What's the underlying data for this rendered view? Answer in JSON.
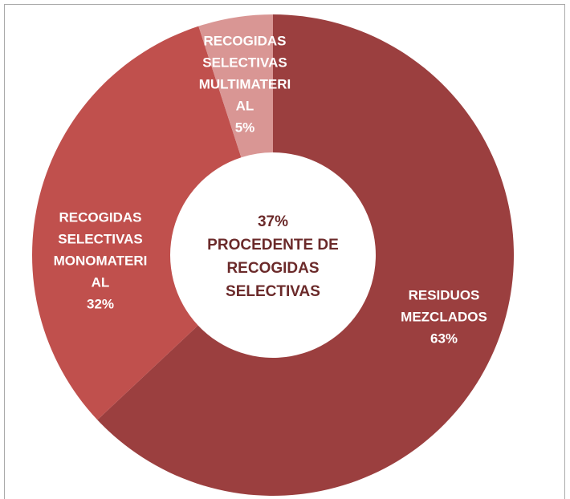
{
  "chart_data": {
    "type": "donut",
    "categories": [
      "RESIDUOS MEZCLADOS",
      "RECOGIDAS SELECTIVAS MONOMATERIAL",
      "RECOGIDAS SELECTIVAS MULTIMATERIAL"
    ],
    "values": [
      63,
      32,
      5
    ],
    "value_labels": [
      "63%",
      "32%",
      "5%"
    ],
    "colors": [
      "#9b3f3f",
      "#c0504d",
      "#d99694"
    ],
    "center_label": {
      "value_label": "37%",
      "text": "PROCEDENTE DE RECOGIDAS SELECTIVAS"
    }
  }
}
